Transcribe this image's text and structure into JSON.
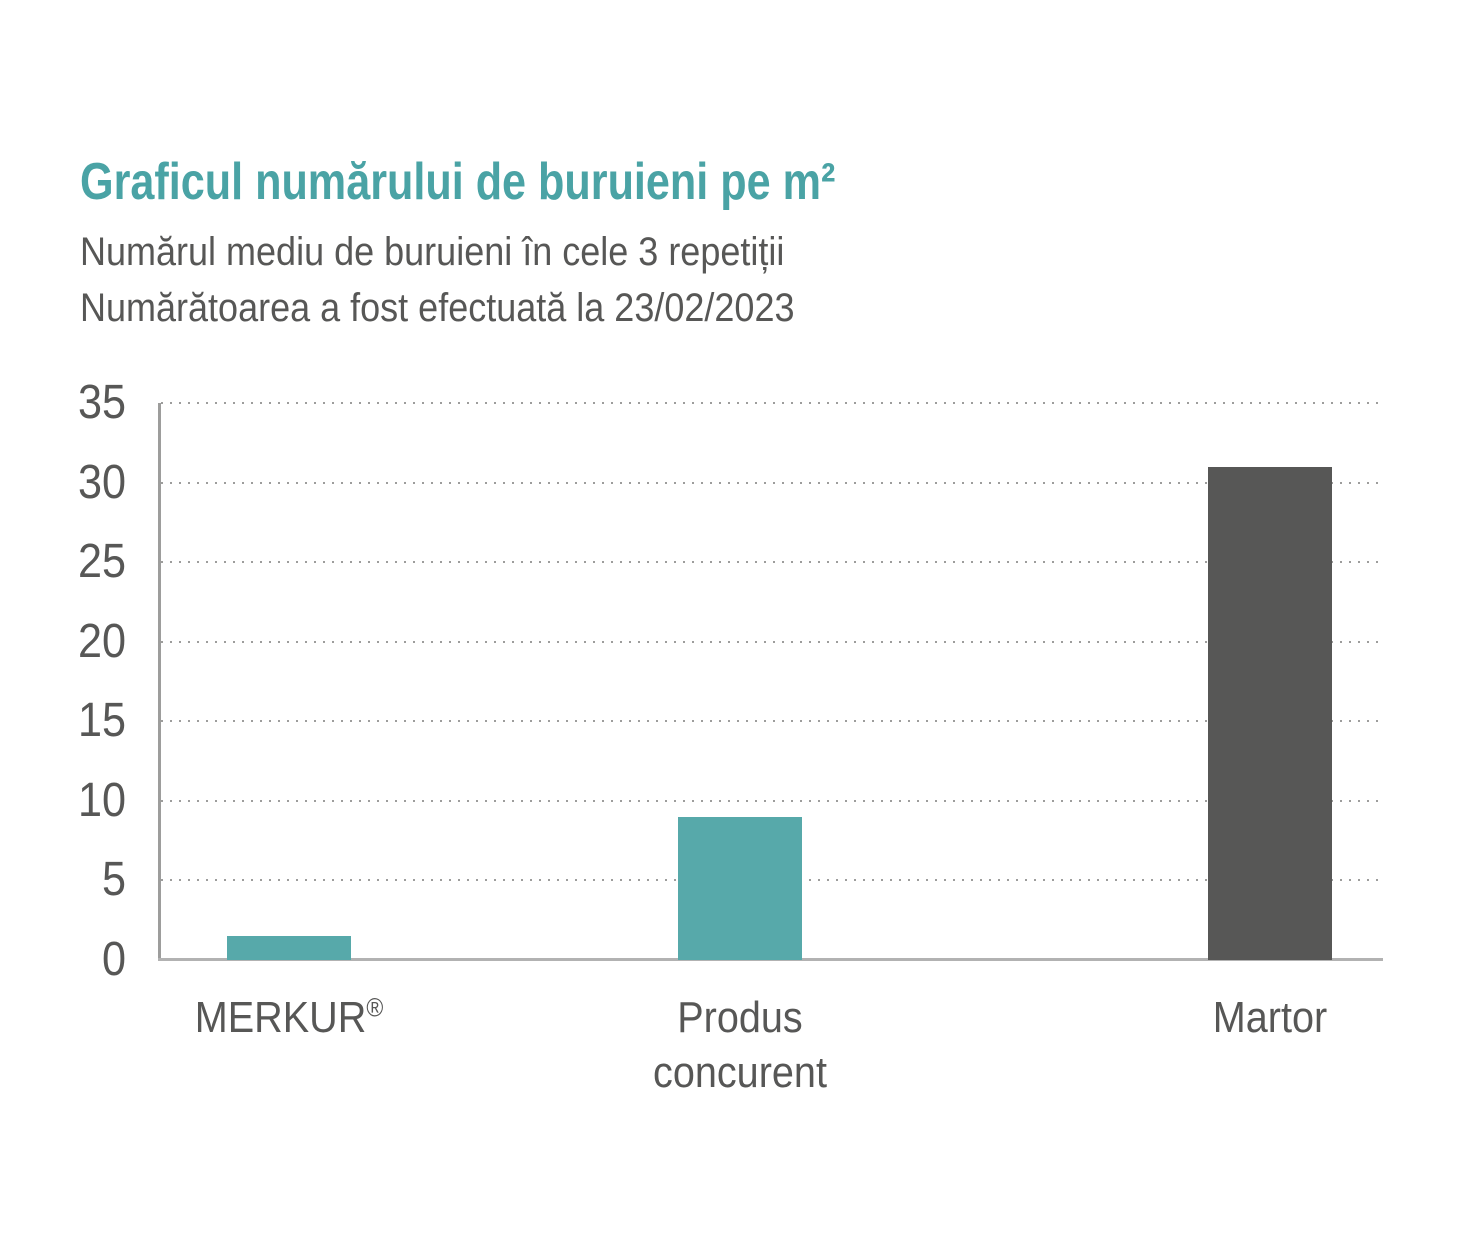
{
  "header": {
    "title": "Graficul numărului de buruieni pe m²",
    "subtitle_line1": "Numărul mediu de buruieni în cele 3 repetiții",
    "subtitle_line2": "Numărătoarea a fost efectuată la 23/02/2023"
  },
  "colors": {
    "title_teal": "#4aa3a5",
    "bar_teal": "#57a9aa",
    "bar_dark": "#575756",
    "text_gray": "#575756",
    "grid_gray": "#9d9d9c",
    "y_axis_gray": "#9d9d9c",
    "x_axis_gray": "#b2b2b2"
  },
  "chart_data": {
    "type": "bar",
    "title": "Graficul numărului de buruieni pe m²",
    "subtitle": "Numărul mediu de buruieni în cele 3 repetiții — Numărătoarea a fost efectuată la 23/02/2023",
    "categories": [
      "MERKUR®",
      "Produs concurent",
      "Martor"
    ],
    "values": [
      1.5,
      9,
      31
    ],
    "series_colors": [
      "#57a9aa",
      "#57a9aa",
      "#575756"
    ],
    "yticks": [
      35,
      30,
      25,
      20,
      15,
      10,
      5,
      0
    ],
    "ylim": [
      0,
      35
    ],
    "xlabel": "",
    "ylabel": "",
    "grid": "horizontal-dotted",
    "legend": "none"
  }
}
